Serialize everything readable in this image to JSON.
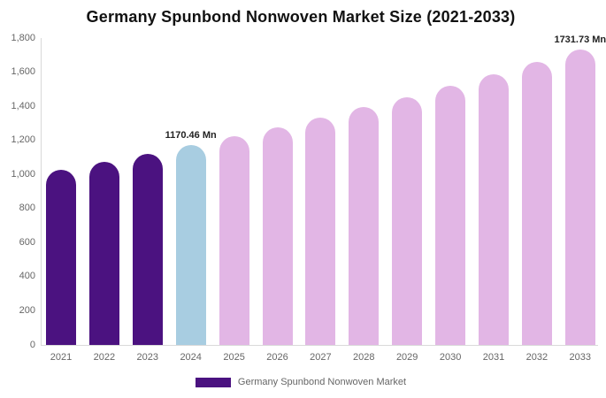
{
  "title": "Germany Spunbond Nonwoven Market Size (2021-2033)",
  "chart_data": {
    "type": "bar",
    "title": "Germany Spunbond Nonwoven Market Size (2021-2033)",
    "categories": [
      "2021",
      "2022",
      "2023",
      "2024",
      "2025",
      "2026",
      "2027",
      "2028",
      "2029",
      "2030",
      "2031",
      "2032",
      "2033"
    ],
    "values": [
      1027,
      1073,
      1121,
      1170.46,
      1222,
      1277,
      1334,
      1393,
      1455,
      1520,
      1587,
      1658,
      1731.73
    ],
    "bar_colors": [
      "#4b1280",
      "#4b1280",
      "#4b1280",
      "#a8cde1",
      "#e2b6e5",
      "#e2b6e5",
      "#e2b6e5",
      "#e2b6e5",
      "#e2b6e5",
      "#e2b6e5",
      "#e2b6e5",
      "#e2b6e5",
      "#e2b6e5"
    ],
    "labeled_points": [
      {
        "category": "2024",
        "label": "1170.46 Mn"
      },
      {
        "category": "2033",
        "label": "1731.73 Mn"
      }
    ],
    "xlabel": "",
    "ylabel": "",
    "ylim": [
      0,
      1800
    ],
    "ytick_interval": 200,
    "ytick_labels": [
      "0",
      "200",
      "400",
      "600",
      "800",
      "1,000",
      "1,200",
      "1,400",
      "1,600",
      "1,800"
    ],
    "grid": false,
    "legend_position": "bottom"
  },
  "legend": {
    "items": [
      {
        "label": "Germany Spunbond Nonwoven Market",
        "color": "#4b1280"
      }
    ]
  },
  "colors": {
    "historical_bar": "#4b1280",
    "base_year_bar": "#a8cde1",
    "forecast_bar": "#e2b6e5",
    "axis_line": "#d9d9d9",
    "tick_text": "#666666",
    "title_text": "#111111",
    "value_label_text": "#222222"
  }
}
